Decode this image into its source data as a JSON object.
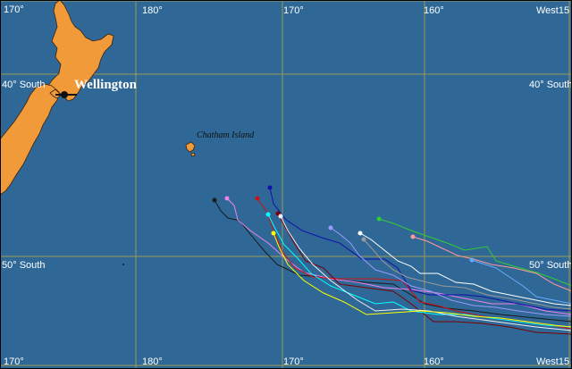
{
  "map": {
    "city_label": "Wellington",
    "island_label": "Chatham Island",
    "longitude_labels": {
      "top": [
        "170°",
        "180°",
        "170°",
        "160°",
        "West15"
      ],
      "bottom": [
        "170°",
        "180°",
        "170°",
        "160°",
        "West15"
      ]
    },
    "latitude_labels": {
      "left": [
        "40° South",
        "50° South"
      ],
      "right": [
        "40° South",
        "50° South"
      ]
    },
    "colors": {
      "ocean": "#2f6896",
      "land": "#f09a3a",
      "grid": "#9a9a55"
    },
    "drifter_tracks": [
      {
        "color": "#1a1a1a"
      },
      {
        "color": "#ee82ee"
      },
      {
        "color": "#cc1111"
      },
      {
        "color": "#1010aa"
      },
      {
        "color": "#7a0000"
      },
      {
        "color": "#00ffff"
      },
      {
        "color": "#f0f0f0"
      },
      {
        "color": "#ffff00"
      },
      {
        "color": "#9999ff"
      },
      {
        "color": "#ffffff"
      },
      {
        "color": "#999999"
      },
      {
        "color": "#33cc33"
      },
      {
        "color": "#ff9999"
      },
      {
        "color": "#66aaff"
      }
    ]
  }
}
